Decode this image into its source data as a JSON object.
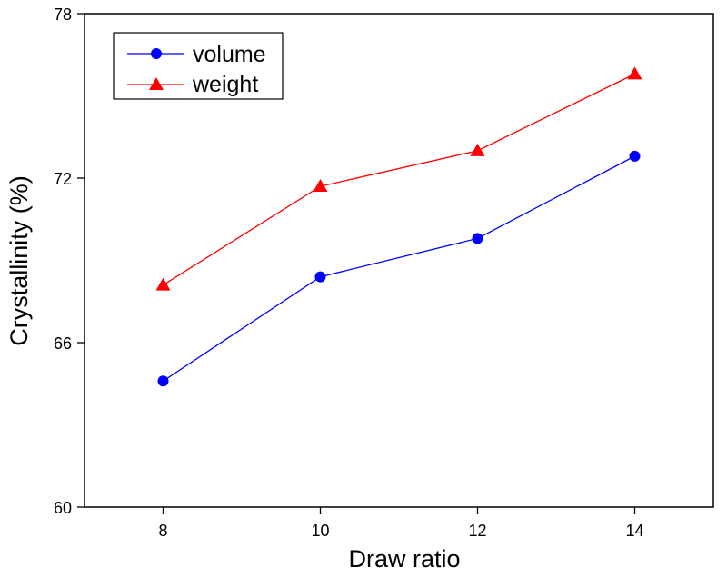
{
  "chart_data": {
    "type": "line",
    "title": "",
    "xlabel": "Draw ratio",
    "ylabel": "Crystallinity (%)",
    "xlim": [
      7,
      15
    ],
    "ylim": [
      60,
      78
    ],
    "xticks": [
      8,
      10,
      12,
      14
    ],
    "yticks": [
      60,
      66,
      72,
      78
    ],
    "grid": false,
    "legend_position": "top-left",
    "x": [
      8,
      10,
      12,
      14
    ],
    "series": [
      {
        "name": "volume",
        "values": [
          64.6,
          68.4,
          69.8,
          72.8
        ],
        "color": "#0000ff",
        "marker": "circle"
      },
      {
        "name": "weight",
        "values": [
          68.1,
          71.7,
          73.0,
          75.8
        ],
        "color": "#ff0000",
        "marker": "triangle"
      }
    ]
  }
}
